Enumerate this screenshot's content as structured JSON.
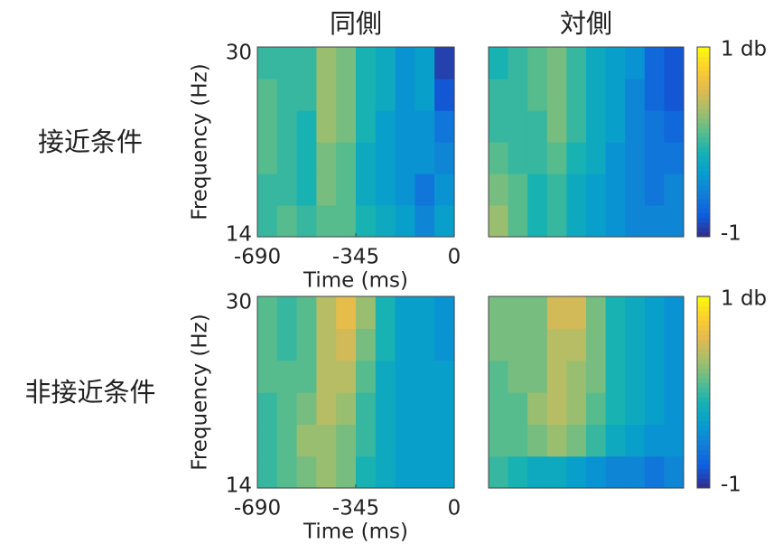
{
  "chart_data": [
    {
      "type": "heatmap",
      "title": "同側",
      "row_label": "接近条件",
      "colormap": "parula",
      "xlabel": "Time (ms)",
      "ylabel": "Frequency (Hz)",
      "xlim": [
        -690,
        0
      ],
      "xticks": [
        -690,
        -345,
        0
      ],
      "ylim": [
        14,
        30
      ],
      "yticks": [
        14,
        30
      ],
      "z": [
        [
          0.0,
          0.1,
          0.0,
          0.1,
          0.1,
          -0.1,
          -0.2,
          -0.3,
          -0.5,
          -0.3
        ],
        [
          0.0,
          0.0,
          -0.1,
          0.2,
          0.1,
          -0.2,
          -0.3,
          -0.4,
          -0.6,
          -0.4
        ],
        [
          0.1,
          0.0,
          -0.1,
          0.2,
          0.1,
          -0.2,
          -0.3,
          -0.4,
          -0.4,
          -0.5
        ],
        [
          0.1,
          0.0,
          -0.1,
          0.3,
          0.2,
          -0.1,
          -0.3,
          -0.4,
          -0.4,
          -0.6
        ],
        [
          0.1,
          0.0,
          0.0,
          0.3,
          0.2,
          -0.1,
          -0.2,
          -0.4,
          -0.3,
          -0.8
        ],
        [
          0.0,
          0.0,
          0.0,
          0.3,
          0.2,
          -0.1,
          -0.2,
          -0.4,
          -0.3,
          -0.9
        ]
      ]
    },
    {
      "type": "heatmap",
      "title": "対側",
      "colormap": "parula",
      "colorbar": {
        "lim": [
          -1,
          1
        ],
        "ticks": [
          {
            "value": 1,
            "label": "1 db"
          },
          -1
        ]
      },
      "z": [
        [
          0.3,
          0.1,
          -0.1,
          0.0,
          -0.2,
          -0.3,
          -0.4,
          -0.5,
          -0.5,
          -0.5
        ],
        [
          0.2,
          0.1,
          -0.1,
          0.0,
          -0.2,
          -0.3,
          -0.4,
          -0.5,
          -0.6,
          -0.5
        ],
        [
          0.1,
          0.0,
          0.0,
          0.1,
          -0.1,
          -0.2,
          -0.4,
          -0.5,
          -0.6,
          -0.6
        ],
        [
          0.0,
          0.0,
          0.0,
          0.2,
          0.0,
          -0.2,
          -0.3,
          -0.5,
          -0.6,
          -0.7
        ],
        [
          0.0,
          0.0,
          0.1,
          0.2,
          0.0,
          -0.2,
          -0.3,
          -0.5,
          -0.7,
          -0.8
        ],
        [
          -0.1,
          0.0,
          0.1,
          0.2,
          0.0,
          -0.2,
          -0.3,
          -0.4,
          -0.7,
          -0.8
        ]
      ]
    },
    {
      "type": "heatmap",
      "row_label": "非接近条件",
      "colormap": "parula",
      "xlabel": "Time (ms)",
      "ylabel": "Frequency (Hz)",
      "xlim": [
        -690,
        0
      ],
      "xticks": [
        -690,
        -345,
        0
      ],
      "ylim": [
        14,
        30
      ],
      "yticks": [
        14,
        30
      ],
      "z": [
        [
          0.0,
          0.1,
          0.2,
          0.3,
          0.2,
          -0.1,
          -0.2,
          -0.3,
          -0.3,
          -0.3
        ],
        [
          0.0,
          0.1,
          0.3,
          0.3,
          0.2,
          0.0,
          -0.2,
          -0.3,
          -0.3,
          -0.3
        ],
        [
          0.0,
          0.1,
          0.2,
          0.4,
          0.3,
          0.0,
          -0.2,
          -0.3,
          -0.3,
          -0.3
        ],
        [
          0.1,
          0.1,
          0.1,
          0.4,
          0.4,
          0.1,
          -0.2,
          -0.3,
          -0.3,
          -0.3
        ],
        [
          0.1,
          0.0,
          0.1,
          0.4,
          0.5,
          0.2,
          -0.1,
          -0.3,
          -0.3,
          -0.4
        ],
        [
          0.1,
          0.0,
          0.1,
          0.4,
          0.6,
          0.3,
          -0.1,
          -0.3,
          -0.3,
          -0.4
        ]
      ]
    },
    {
      "type": "heatmap",
      "colormap": "parula",
      "colorbar": {
        "lim": [
          -1,
          1
        ],
        "ticks": [
          {
            "value": 1,
            "label": "1 db"
          },
          -1
        ]
      },
      "z": [
        [
          0.0,
          -0.1,
          -0.2,
          -0.2,
          -0.3,
          -0.4,
          -0.5,
          -0.5,
          -0.6,
          -0.5
        ],
        [
          0.1,
          0.1,
          0.2,
          0.3,
          0.2,
          0.0,
          -0.2,
          -0.3,
          -0.4,
          -0.4
        ],
        [
          0.1,
          0.1,
          0.3,
          0.4,
          0.3,
          0.1,
          -0.1,
          -0.2,
          -0.3,
          -0.4
        ],
        [
          0.1,
          0.2,
          0.2,
          0.4,
          0.3,
          0.2,
          -0.1,
          -0.2,
          -0.3,
          -0.4
        ],
        [
          0.2,
          0.2,
          0.2,
          0.4,
          0.4,
          0.2,
          -0.1,
          -0.2,
          -0.3,
          -0.4
        ],
        [
          0.2,
          0.2,
          0.2,
          0.5,
          0.5,
          0.2,
          -0.1,
          -0.2,
          -0.3,
          -0.4
        ]
      ]
    }
  ]
}
